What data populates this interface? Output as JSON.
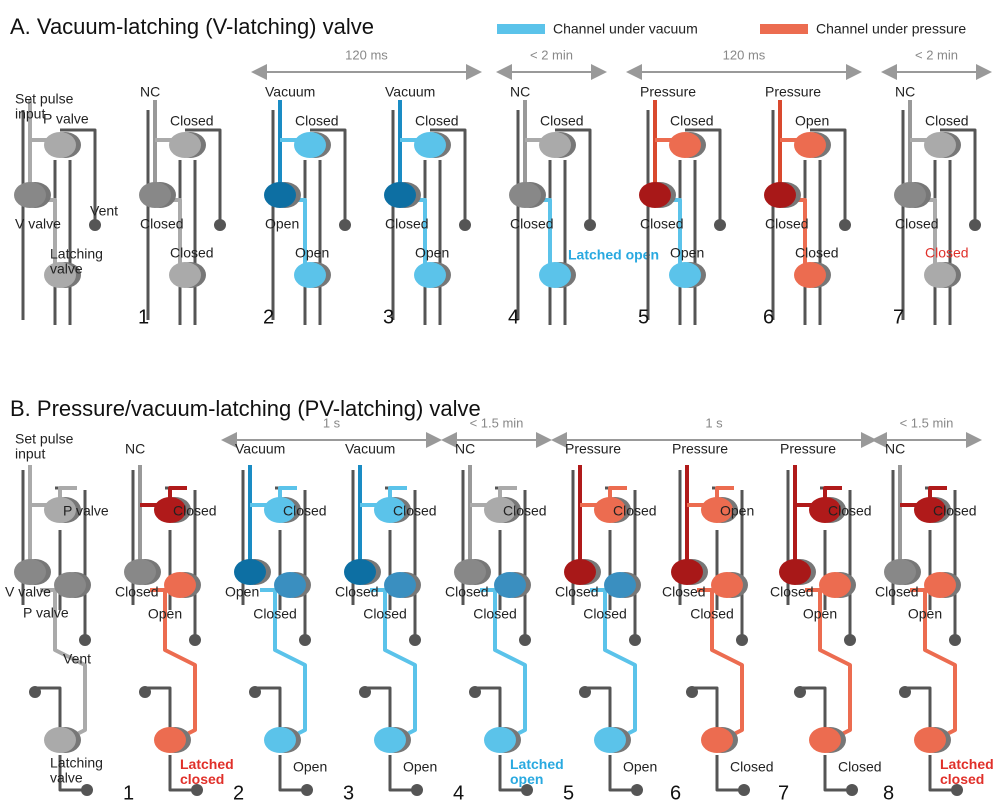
{
  "legend": {
    "vacuum": {
      "label": "Channel under vacuum",
      "color": "#5bc3ea"
    },
    "pressure": {
      "label": "Channel under pressure",
      "color": "#ec6c50"
    }
  },
  "panel_a": {
    "title": "A.  Vacuum-latching (V-latching) valve",
    "key": {
      "input": [
        "Set pulse",
        "input"
      ],
      "p": "P valve",
      "v": "V valve",
      "vent": "Vent",
      "latch": [
        "Latching",
        "valve"
      ]
    },
    "timings": [
      {
        "label": "120 ms",
        "from": 2,
        "to": 3
      },
      {
        "label": "< 2 min",
        "from": 4,
        "to": 4
      },
      {
        "label": "120 ms",
        "from": 5,
        "to": 6
      },
      {
        "label": "< 2 min",
        "from": 7,
        "to": 7
      }
    ],
    "columns": [
      {
        "input": "NC",
        "p": "Closed",
        "v": "Closed",
        "latch": "Closed",
        "number": "1",
        "colors": {
          "input": "#999",
          "p": "#aaa",
          "v": "#888",
          "latch": "#aaa",
          "label": "#222"
        }
      },
      {
        "input": "Vacuum",
        "p": "Closed",
        "v": "Open",
        "latch": "Open",
        "number": "2",
        "colors": {
          "input": "#1a8cc4",
          "p": "#5bc3ea",
          "v": "#0d6fa3",
          "latch": "#5bc3ea",
          "label": "#222"
        }
      },
      {
        "input": "Vacuum",
        "p": "Closed",
        "v": "Closed",
        "latch": "Open",
        "number": "3",
        "colors": {
          "input": "#1a8cc4",
          "p": "#5bc3ea",
          "v": "#0d6fa3",
          "latch": "#5bc3ea",
          "label": "#222"
        }
      },
      {
        "input": "NC",
        "p": "Closed",
        "v": "Closed",
        "latch": "Latched open",
        "number": "4",
        "colors": {
          "input": "#999",
          "p": "#aaa",
          "v": "#888",
          "latch": "#5bc3ea",
          "label": "#29a9e0"
        }
      },
      {
        "input": "Pressure",
        "p": "Closed",
        "v": "Closed",
        "latch": "Open",
        "number": "5",
        "colors": {
          "input": "#d9492e",
          "p": "#ec6c50",
          "v": "#a81818",
          "latch": "#5bc3ea",
          "label": "#222"
        }
      },
      {
        "input": "Pressure",
        "p": "Open",
        "v": "Closed",
        "latch": "Closed",
        "number": "6",
        "colors": {
          "input": "#d9492e",
          "p": "#ec6c50",
          "v": "#a81818",
          "latch": "#ec6c50",
          "label": "#222"
        }
      },
      {
        "input": "NC",
        "p": "Closed",
        "v": "Closed",
        "latch": "Closed",
        "number": "7",
        "colors": {
          "input": "#999",
          "p": "#aaa",
          "v": "#888",
          "latch": "#aaa",
          "label": "#e0302a"
        }
      }
    ]
  },
  "panel_b": {
    "title": "B.  Pressure/vacuum-latching (PV-latching) valve",
    "key": {
      "input": [
        "Set pulse",
        "input"
      ],
      "p": "P valve",
      "v": "V valve",
      "p2": "P valve",
      "vent": "Vent",
      "latch": [
        "Latching",
        "valve"
      ]
    },
    "timings": [
      {
        "label": "1 s",
        "from": 2,
        "to": 3
      },
      {
        "label": "< 1.5 min",
        "from": 4,
        "to": 4
      },
      {
        "label": "1 s",
        "from": 5,
        "to": 7
      },
      {
        "label": "< 1.5 min",
        "from": 8,
        "to": 8
      }
    ],
    "columns": [
      {
        "input": "NC",
        "p": "Closed",
        "v": "Closed",
        "p2": "Open",
        "latch": "Latched closed",
        "number": "1",
        "colors": {
          "input": "#999",
          "p": "#b01a1a",
          "v": "#888",
          "p2": "#ec6c50",
          "latch": "#ec6c50",
          "label": "#e0302a"
        }
      },
      {
        "input": "Vacuum",
        "p": "Closed",
        "v": "Open",
        "p2": "Closed",
        "latch": "Open",
        "number": "2",
        "colors": {
          "input": "#1a8cc4",
          "p": "#5bc3ea",
          "v": "#0d6fa3",
          "p2": "#3a8fc0",
          "latch": "#5bc3ea",
          "label": "#222"
        }
      },
      {
        "input": "Vacuum",
        "p": "Closed",
        "v": "Closed",
        "p2": "Closed",
        "latch": "Open",
        "number": "3",
        "colors": {
          "input": "#1a8cc4",
          "p": "#5bc3ea",
          "v": "#0d6fa3",
          "p2": "#3a8fc0",
          "latch": "#5bc3ea",
          "label": "#222"
        }
      },
      {
        "input": "NC",
        "p": "Closed",
        "v": "Closed",
        "p2": "Closed",
        "latch": "Latched open",
        "number": "4",
        "colors": {
          "input": "#999",
          "p": "#aaa",
          "v": "#888",
          "p2": "#3a8fc0",
          "latch": "#5bc3ea",
          "label": "#29a9e0"
        }
      },
      {
        "input": "Pressure",
        "p": "Closed",
        "v": "Closed",
        "p2": "Closed",
        "latch": "Open",
        "number": "5",
        "colors": {
          "input": "#b01a1a",
          "p": "#ec6c50",
          "v": "#a81818",
          "p2": "#3a8fc0",
          "latch": "#5bc3ea",
          "label": "#222"
        }
      },
      {
        "input": "Pressure",
        "p": "Open",
        "v": "Closed",
        "p2": "Closed",
        "latch": "Closed",
        "number": "6",
        "colors": {
          "input": "#b01a1a",
          "p": "#ec6c50",
          "v": "#a81818",
          "p2": "#ec6c50",
          "latch": "#ec6c50",
          "label": "#222"
        }
      },
      {
        "input": "Pressure",
        "p": "Closed",
        "v": "Closed",
        "p2": "Open",
        "latch": "Closed",
        "number": "7",
        "colors": {
          "input": "#b01a1a",
          "p": "#b01a1a",
          "v": "#a81818",
          "p2": "#ec6c50",
          "latch": "#ec6c50",
          "label": "#222"
        }
      },
      {
        "input": "NC",
        "p": "Closed",
        "v": "Closed",
        "p2": "Open",
        "latch": "Latched closed",
        "number": "8",
        "colors": {
          "input": "#999",
          "p": "#b01a1a",
          "v": "#888",
          "p2": "#ec6c50",
          "latch": "#ec6c50",
          "label": "#e0302a"
        }
      }
    ]
  }
}
